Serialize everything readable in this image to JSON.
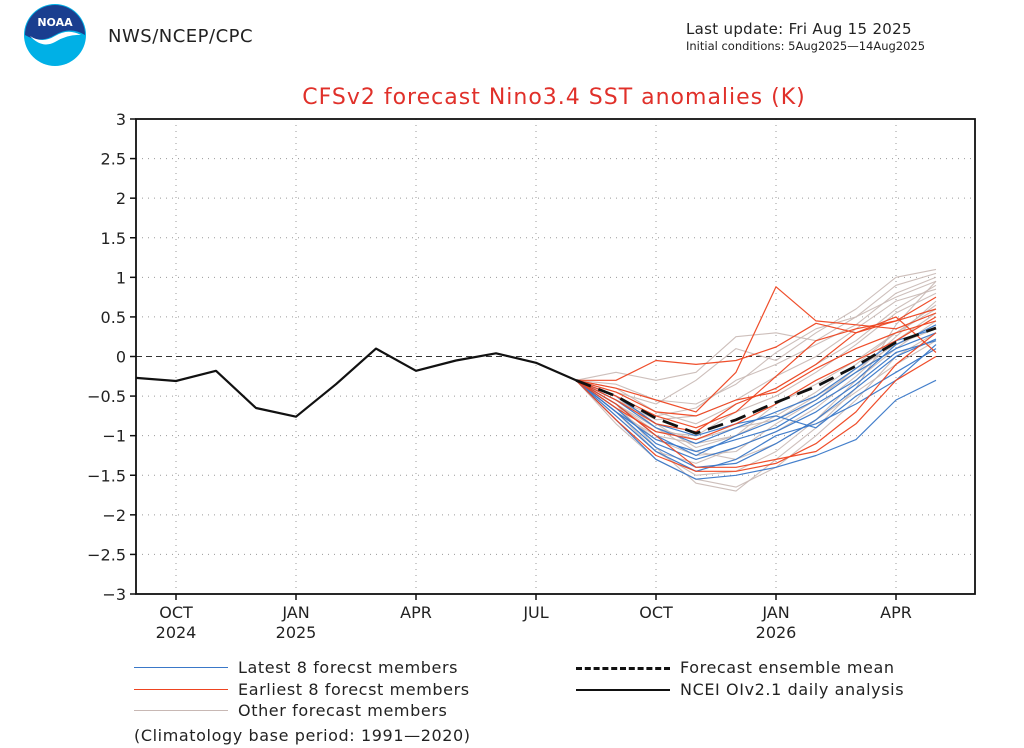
{
  "header": {
    "agency": "NWS/NCEP/CPC",
    "last_update": "Last update: Fri Aug 15 2025",
    "initial_conditions": "Initial conditions: 5Aug2025—14Aug2025"
  },
  "logo": {
    "text": "NOAA",
    "colors": {
      "outer": "#00b0e6",
      "inner": "#1a3e8f",
      "bird": "#ffffff"
    }
  },
  "chart_data": {
    "type": "line",
    "title": "CFSv2 forecast Nino3.4 SST anomalies (K)",
    "ylabel": "",
    "xlabel": "",
    "ylim": [
      -3,
      3
    ],
    "xlim": [
      -1,
      20.3
    ],
    "yticks": [
      "3",
      "2.5",
      "2",
      "1.5",
      "1",
      "0.5",
      "0",
      "−0.5",
      "−1",
      "−1.5",
      "−2",
      "−2.5",
      "−3"
    ],
    "ytick_values": [
      3,
      2.5,
      2,
      1.5,
      1,
      0.5,
      0,
      -0.5,
      -1,
      -1.5,
      -2,
      -2.5,
      -3
    ],
    "xticks": [
      {
        "month_index": 0,
        "label": "OCT",
        "year": "2024"
      },
      {
        "month_index": 3,
        "label": "JAN",
        "year": "2025"
      },
      {
        "month_index": 6,
        "label": "APR",
        "year": ""
      },
      {
        "month_index": 9,
        "label": "JUL",
        "year": ""
      },
      {
        "month_index": 12,
        "label": "OCT",
        "year": ""
      },
      {
        "month_index": 15,
        "label": "JAN",
        "year": "2026"
      },
      {
        "month_index": 18,
        "label": "APR",
        "year": ""
      }
    ],
    "grid": true,
    "zero_line": true,
    "colors": {
      "latest": "#3a78c8",
      "earliest": "#ee4420",
      "other": "#c8b8b4",
      "mean": "#111111",
      "analysis": "#111111",
      "title": "#e0302a"
    },
    "series": [
      {
        "name": "NCEI OIv2.1 daily analysis",
        "group": "analysis",
        "x": [
          -1,
          0,
          1,
          2,
          3,
          4,
          5,
          6,
          7,
          8,
          9,
          10
        ],
        "values": [
          -0.27,
          -0.31,
          -0.18,
          -0.65,
          -0.76,
          -0.35,
          0.1,
          -0.18,
          -0.05,
          0.04,
          -0.08,
          -0.3
        ]
      },
      {
        "name": "Forecast ensemble mean",
        "group": "mean",
        "x": [
          10,
          11,
          12,
          13,
          14,
          15,
          16,
          17,
          18,
          19
        ],
        "values": [
          -0.3,
          -0.5,
          -0.78,
          -0.97,
          -0.8,
          -0.58,
          -0.38,
          -0.12,
          0.18,
          0.36
        ]
      },
      {
        "name": "Latest 1",
        "group": "latest",
        "x": [
          10,
          11,
          12,
          13,
          14,
          15,
          16,
          17,
          18,
          19
        ],
        "values": [
          -0.3,
          -0.7,
          -1.15,
          -1.4,
          -1.35,
          -1.1,
          -0.8,
          -0.4,
          0.0,
          0.22
        ]
      },
      {
        "name": "Latest 2",
        "group": "latest",
        "x": [
          10,
          11,
          12,
          13,
          14,
          15,
          16,
          17,
          18,
          19
        ],
        "values": [
          -0.3,
          -0.6,
          -1.0,
          -1.25,
          -1.0,
          -0.8,
          -0.55,
          -0.2,
          0.1,
          0.3
        ]
      },
      {
        "name": "Latest 3",
        "group": "latest",
        "x": [
          10,
          11,
          12,
          13,
          14,
          15,
          16,
          17,
          18,
          19
        ],
        "values": [
          -0.3,
          -0.8,
          -1.3,
          -1.55,
          -1.5,
          -1.4,
          -1.25,
          -1.05,
          -0.55,
          -0.3
        ]
      },
      {
        "name": "Latest 4",
        "group": "latest",
        "x": [
          10,
          11,
          12,
          13,
          14,
          15,
          16,
          17,
          18,
          19
        ],
        "values": [
          -0.3,
          -0.55,
          -0.9,
          -1.1,
          -0.9,
          -0.7,
          -0.5,
          -0.15,
          0.2,
          0.35
        ]
      },
      {
        "name": "Latest 5",
        "group": "latest",
        "x": [
          10,
          11,
          12,
          13,
          14,
          15,
          16,
          17,
          18,
          19
        ],
        "values": [
          -0.3,
          -0.75,
          -1.2,
          -1.45,
          -1.3,
          -1.0,
          -0.85,
          -0.6,
          -0.3,
          0.15
        ]
      },
      {
        "name": "Latest 6",
        "group": "latest",
        "x": [
          10,
          11,
          12,
          13,
          14,
          15,
          16,
          17,
          18,
          19
        ],
        "values": [
          -0.3,
          -0.65,
          -1.1,
          -1.3,
          -1.15,
          -0.95,
          -0.7,
          -0.35,
          0.05,
          0.2
        ]
      },
      {
        "name": "Latest 7",
        "group": "latest",
        "x": [
          10,
          11,
          12,
          13,
          14,
          15,
          16,
          17,
          18,
          19
        ],
        "values": [
          -0.3,
          -0.5,
          -0.85,
          -1.0,
          -0.85,
          -0.75,
          -0.9,
          -0.5,
          -0.2,
          0.1
        ]
      },
      {
        "name": "Latest 8",
        "group": "latest",
        "x": [
          10,
          11,
          12,
          13,
          14,
          15,
          16,
          17,
          18,
          19
        ],
        "values": [
          -0.3,
          -0.7,
          -1.05,
          -1.2,
          -1.05,
          -0.9,
          -0.6,
          -0.3,
          0.15,
          0.4
        ]
      },
      {
        "name": "Earliest 1",
        "group": "earliest",
        "x": [
          10,
          11,
          12,
          13,
          14,
          15,
          16,
          17,
          18,
          19
        ],
        "values": [
          -0.3,
          -0.4,
          -0.55,
          -0.7,
          -0.2,
          0.88,
          0.45,
          0.4,
          0.35,
          0.55
        ]
      },
      {
        "name": "Earliest 2",
        "group": "earliest",
        "x": [
          10,
          11,
          12,
          13,
          14,
          15,
          16,
          17,
          18,
          19
        ],
        "values": [
          -0.3,
          -0.3,
          -0.05,
          -0.1,
          -0.05,
          0.12,
          0.42,
          0.3,
          0.45,
          0.75
        ]
      },
      {
        "name": "Earliest 3",
        "group": "earliest",
        "x": [
          10,
          11,
          12,
          13,
          14,
          15,
          16,
          17,
          18,
          19
        ],
        "values": [
          -0.3,
          -0.6,
          -1.0,
          -1.4,
          -1.4,
          -1.3,
          -1.2,
          -0.85,
          -0.3,
          0.0
        ]
      },
      {
        "name": "Earliest 4",
        "group": "earliest",
        "x": [
          10,
          11,
          12,
          13,
          14,
          15,
          16,
          17,
          18,
          19
        ],
        "values": [
          -0.3,
          -0.5,
          -0.75,
          -0.9,
          -0.7,
          -0.25,
          0.2,
          0.35,
          0.45,
          0.6
        ]
      },
      {
        "name": "Earliest 5",
        "group": "earliest",
        "x": [
          10,
          11,
          12,
          13,
          14,
          15,
          16,
          17,
          18,
          19
        ],
        "values": [
          -0.3,
          -0.8,
          -1.25,
          -1.45,
          -1.45,
          -1.35,
          -1.1,
          -0.7,
          -0.1,
          0.3
        ]
      },
      {
        "name": "Earliest 6",
        "group": "earliest",
        "x": [
          10,
          11,
          12,
          13,
          14,
          15,
          16,
          17,
          18,
          19
        ],
        "values": [
          -0.3,
          -0.55,
          -0.85,
          -0.95,
          -0.6,
          -0.4,
          -0.1,
          0.3,
          0.5,
          0.05
        ]
      },
      {
        "name": "Earliest 7",
        "group": "earliest",
        "x": [
          10,
          11,
          12,
          13,
          14,
          15,
          16,
          17,
          18,
          19
        ],
        "values": [
          -0.3,
          -0.45,
          -0.7,
          -0.75,
          -0.55,
          -0.45,
          -0.15,
          0.1,
          0.3,
          0.45
        ]
      },
      {
        "name": "Earliest 8",
        "group": "earliest",
        "x": [
          10,
          11,
          12,
          13,
          14,
          15,
          16,
          17,
          18,
          19
        ],
        "values": [
          -0.3,
          -0.65,
          -0.95,
          -1.05,
          -0.85,
          -0.6,
          -0.3,
          -0.05,
          0.2,
          0.5
        ]
      },
      {
        "name": "Other 1",
        "group": "other",
        "x": [
          10,
          11,
          12,
          13,
          14,
          15,
          16,
          17,
          18,
          19
        ],
        "values": [
          -0.3,
          -0.2,
          -0.3,
          -0.2,
          0.25,
          0.3,
          0.2,
          0.5,
          0.9,
          1.05
        ]
      },
      {
        "name": "Other 2",
        "group": "other",
        "x": [
          10,
          11,
          12,
          13,
          14,
          15,
          16,
          17,
          18,
          19
        ],
        "values": [
          -0.3,
          -0.85,
          -1.3,
          -1.55,
          -1.65,
          -1.4,
          -1.0,
          -0.55,
          0.0,
          0.3
        ]
      },
      {
        "name": "Other 3",
        "group": "other",
        "x": [
          10,
          11,
          12,
          13,
          14,
          15,
          16,
          17,
          18,
          19
        ],
        "values": [
          -0.3,
          -0.6,
          -1.15,
          -1.6,
          -1.7,
          -1.3,
          -0.9,
          -0.4,
          0.4,
          0.95
        ]
      },
      {
        "name": "Other 4",
        "group": "other",
        "x": [
          10,
          11,
          12,
          13,
          14,
          15,
          16,
          17,
          18,
          19
        ],
        "values": [
          -0.3,
          -0.45,
          -0.6,
          -0.3,
          0.1,
          -0.05,
          0.3,
          0.6,
          1.0,
          1.1
        ]
      },
      {
        "name": "Other 5",
        "group": "other",
        "x": [
          10,
          11,
          12,
          13,
          14,
          15,
          16,
          17,
          18,
          19
        ],
        "values": [
          -0.3,
          -0.55,
          -0.8,
          -0.75,
          -0.55,
          -0.25,
          0.0,
          0.35,
          0.7,
          0.85
        ]
      },
      {
        "name": "Other 6",
        "group": "other",
        "x": [
          10,
          11,
          12,
          13,
          14,
          15,
          16,
          17,
          18,
          19
        ],
        "values": [
          -0.3,
          -0.7,
          -1.0,
          -1.1,
          -1.0,
          -0.6,
          -0.35,
          -0.05,
          0.3,
          0.65
        ]
      },
      {
        "name": "Other 7",
        "group": "other",
        "x": [
          10,
          11,
          12,
          13,
          14,
          15,
          16,
          17,
          18,
          19
        ],
        "values": [
          -0.3,
          -0.5,
          -0.9,
          -1.2,
          -1.3,
          -1.1,
          -0.8,
          -0.3,
          0.1,
          0.45
        ]
      },
      {
        "name": "Other 8",
        "group": "other",
        "x": [
          10,
          11,
          12,
          13,
          14,
          15,
          16,
          17,
          18,
          19
        ],
        "values": [
          -0.3,
          -0.35,
          -0.55,
          -0.6,
          -0.35,
          0.05,
          0.35,
          0.5,
          0.75,
          0.95
        ]
      },
      {
        "name": "Other 9",
        "group": "other",
        "x": [
          10,
          11,
          12,
          13,
          14,
          15,
          16,
          17,
          18,
          19
        ],
        "values": [
          -0.3,
          -0.75,
          -1.2,
          -1.35,
          -1.15,
          -0.95,
          -0.65,
          -0.25,
          0.2,
          0.55
        ]
      },
      {
        "name": "Other 10",
        "group": "other",
        "x": [
          10,
          11,
          12,
          13,
          14,
          15,
          16,
          17,
          18,
          19
        ],
        "values": [
          -0.3,
          -0.6,
          -0.95,
          -1.0,
          -0.7,
          -0.5,
          -0.2,
          0.15,
          0.55,
          0.8
        ]
      },
      {
        "name": "Other 11",
        "group": "other",
        "x": [
          10,
          11,
          12,
          13,
          14,
          15,
          16,
          17,
          18,
          19
        ],
        "values": [
          -0.3,
          -0.65,
          -1.05,
          -1.25,
          -1.2,
          -0.85,
          -0.55,
          -0.15,
          0.15,
          0.35
        ]
      },
      {
        "name": "Other 12",
        "group": "other",
        "x": [
          10,
          11,
          12,
          13,
          14,
          15,
          16,
          17,
          18,
          19
        ],
        "values": [
          -0.3,
          -0.4,
          -0.7,
          -0.85,
          -0.6,
          -0.4,
          -0.1,
          0.2,
          0.6,
          0.9
        ]
      },
      {
        "name": "Other 13",
        "group": "other",
        "x": [
          10,
          11,
          12,
          13,
          14,
          15,
          16,
          17,
          18,
          19
        ],
        "values": [
          -0.3,
          -0.5,
          -0.85,
          -1.15,
          -1.0,
          -0.75,
          -0.45,
          -0.1,
          0.3,
          0.6
        ]
      },
      {
        "name": "Other 14",
        "group": "other",
        "x": [
          10,
          11,
          12,
          13,
          14,
          15,
          16,
          17,
          18,
          19
        ],
        "values": [
          -0.3,
          -0.7,
          -1.2,
          -1.5,
          -1.45,
          -1.2,
          -0.8,
          -0.45,
          -0.1,
          0.2
        ]
      },
      {
        "name": "Other 15",
        "group": "other",
        "x": [
          10,
          11,
          12,
          13,
          14,
          15,
          16,
          17,
          18,
          19
        ],
        "values": [
          -0.3,
          -0.55,
          -0.75,
          -0.65,
          -0.3,
          -0.1,
          0.15,
          0.4,
          0.8,
          1.0
        ]
      },
      {
        "name": "Other 16",
        "group": "other",
        "x": [
          10,
          11,
          12,
          13,
          14,
          15,
          16,
          17,
          18,
          19
        ],
        "values": [
          -0.3,
          -0.6,
          -0.9,
          -1.05,
          -0.9,
          -0.8,
          -0.5,
          -0.2,
          0.25,
          0.7
        ]
      }
    ]
  },
  "legend": {
    "latest": "Latest 8 forecst members",
    "earliest": "Earliest 8 forecst members",
    "other": "Other forecast members",
    "mean": "Forecast ensemble mean",
    "analysis": "NCEI OIv2.1 daily analysis"
  },
  "footnote": "(Climatology base period: 1991—2020)"
}
